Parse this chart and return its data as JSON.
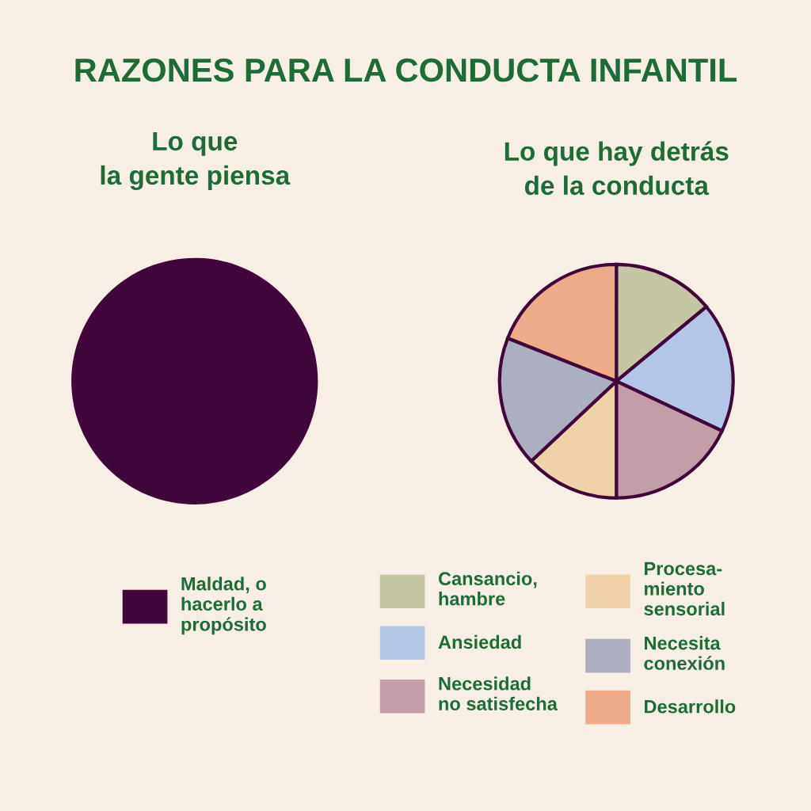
{
  "chart_data": [
    {
      "type": "pie",
      "title": "RAZONES PARA LA CONDUCTA INFANTIL",
      "subtitle": "Lo que\nla gente piensa",
      "categories": [
        "Maldad, o\nhacerlo a\npropósito"
      ],
      "values": [
        100
      ],
      "colors": [
        "#42073a"
      ],
      "legend": "bottom"
    },
    {
      "type": "pie",
      "subtitle": "Lo que hay detrás\nde la conducta",
      "categories": [
        "Cansancio,\nhambre",
        "Ansiedad",
        "Necesidad\nno satisfecha",
        "Procesa-\nmiento\nsensorial",
        "Necesita\nconexión",
        "Desarrollo"
      ],
      "values": [
        14,
        18,
        18,
        13,
        18,
        19
      ],
      "colors": [
        "#c5c6a4",
        "#b3c6e6",
        "#c29ea8",
        "#f0d2a8",
        "#abafc0",
        "#eeab8a"
      ],
      "legend": "bottom"
    }
  ]
}
